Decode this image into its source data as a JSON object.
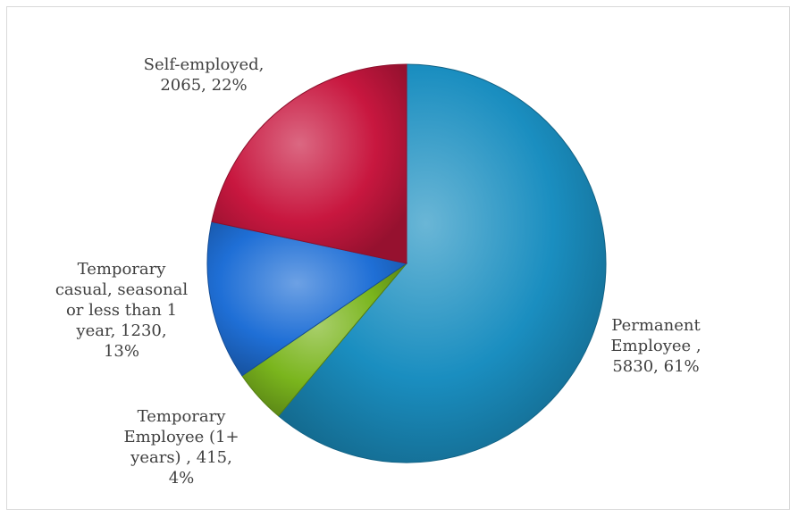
{
  "chart_data": {
    "type": "pie",
    "title": "",
    "slices": [
      {
        "name": "Permanent Employee",
        "value": 5830,
        "percent": "61%",
        "label_lines": [
          "Permanent",
          "Employee ,",
          "5830, 61%"
        ],
        "color": "#1a8ec0"
      },
      {
        "name": "Temporary Employee (1+ years)",
        "value": 415,
        "percent": "4%",
        "label_lines": [
          "Temporary",
          "Employee (1+",
          "years) , 415,",
          "4%"
        ],
        "color": "#7ab51d"
      },
      {
        "name": "Temporary casual, seasonal or less than 1 year",
        "value": 1230,
        "percent": "13%",
        "label_lines": [
          "Temporary",
          "casual, seasonal",
          "or less than 1",
          "year, 1230,",
          "13%"
        ],
        "color": "#1f6fd6"
      },
      {
        "name": "Self-employed",
        "value": 2065,
        "percent": "22%",
        "label_lines": [
          "Self-employed,",
          "2065, 22%"
        ],
        "color": "#c8173f"
      }
    ],
    "legend": "none",
    "start_angle": "12 o'clock",
    "direction": "clockwise"
  }
}
